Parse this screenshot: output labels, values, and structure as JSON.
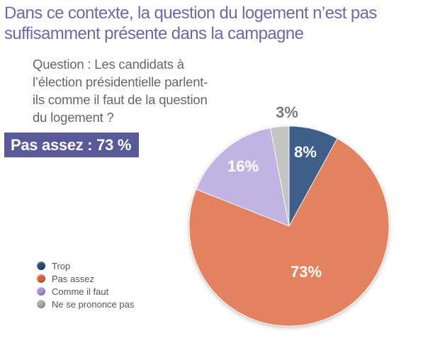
{
  "title": "Dans ce contexte, la question du logement n’est pas suffisamment présente dans la campagne",
  "question": "Question : Les candidats à l’élection présidentielle parlent-ils comme il faut de la question du logement ?",
  "highlight": "Pas assez : 73 %",
  "chart_data": {
    "type": "pie",
    "slices": [
      {
        "name": "Trop",
        "value": 8,
        "label": "8%",
        "color": "#3d5f8a"
      },
      {
        "name": "Pas assez",
        "value": 73,
        "label": "73%",
        "color": "#e2825e"
      },
      {
        "name": "Comme il faut",
        "value": 16,
        "label": "16%",
        "color": "#c2b4e2"
      },
      {
        "name": "Ne se prononce pas",
        "value": 3,
        "label": "3%",
        "color": "#c4c4c4"
      }
    ]
  },
  "legend": [
    {
      "label": "Trop",
      "color": "#234a78"
    },
    {
      "label": "Pas assez",
      "color": "#d8633a"
    },
    {
      "label": "Comme il faut",
      "color": "#a98fd6"
    },
    {
      "label": "Ne se prononce pas",
      "color": "#aaaaaa"
    }
  ]
}
